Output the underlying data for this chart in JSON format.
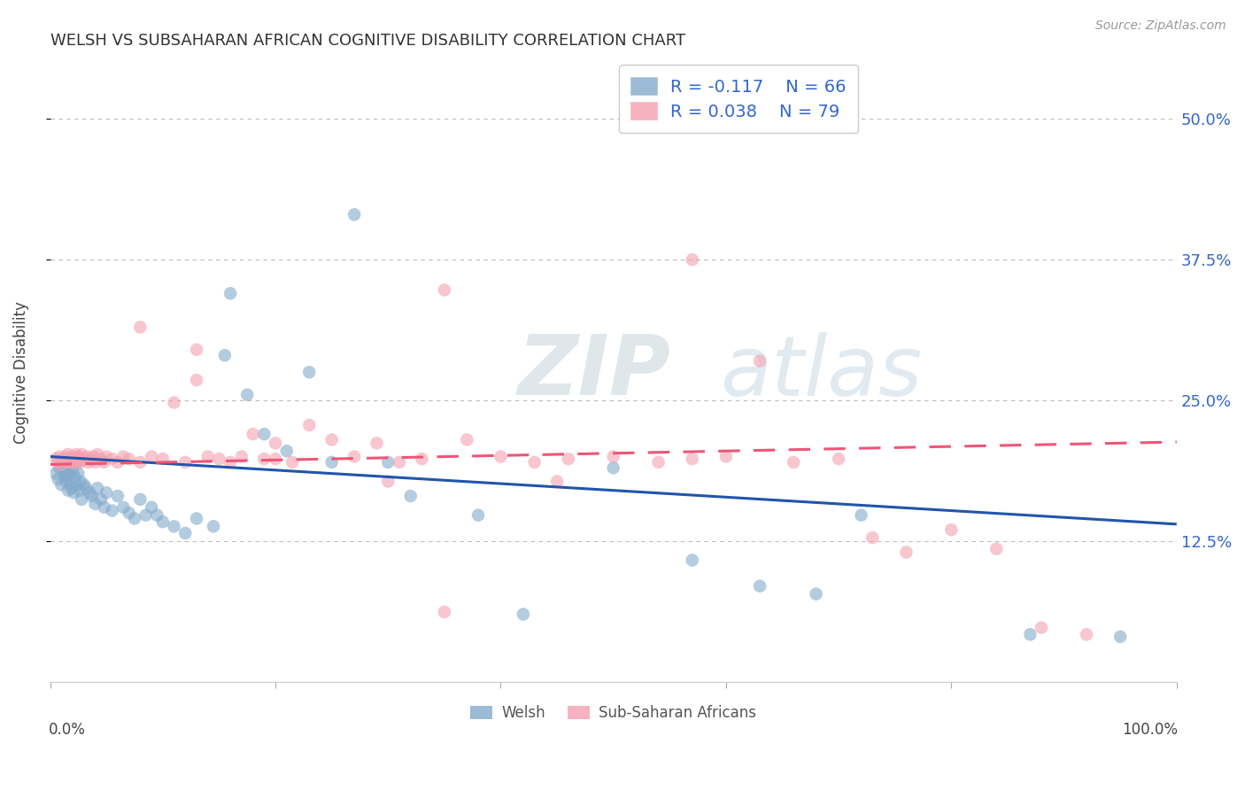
{
  "title": "WELSH VS SUBSAHARAN AFRICAN COGNITIVE DISABILITY CORRELATION CHART",
  "source": "Source: ZipAtlas.com",
  "ylabel": "Cognitive Disability",
  "legend_welsh": "Welsh",
  "legend_ssa": "Sub-Saharan Africans",
  "r_welsh": -0.117,
  "n_welsh": 66,
  "r_ssa": 0.038,
  "n_ssa": 79,
  "welsh_color": "#82AACC",
  "ssa_color": "#F4A0B0",
  "welsh_line_color": "#2255AA",
  "ssa_line_color": "#EE5577",
  "watermark_zip": "ZIP",
  "watermark_atlas": "atlas",
  "xlim": [
    0.0,
    1.0
  ],
  "ylim": [
    0.0,
    0.55
  ],
  "ytick_vals": [
    0.125,
    0.25,
    0.375,
    0.5
  ],
  "ytick_labels": [
    "12.5%",
    "25.0%",
    "37.5%",
    "50.0%"
  ],
  "legend_text_color": "#3366CC",
  "welsh_x": [
    0.005,
    0.007,
    0.008,
    0.01,
    0.01,
    0.012,
    0.013,
    0.014,
    0.015,
    0.015,
    0.016,
    0.017,
    0.018,
    0.019,
    0.02,
    0.02,
    0.021,
    0.022,
    0.023,
    0.024,
    0.025,
    0.026,
    0.027,
    0.028,
    0.03,
    0.032,
    0.035,
    0.037,
    0.04,
    0.042,
    0.045,
    0.048,
    0.05,
    0.055,
    0.06,
    0.065,
    0.07,
    0.075,
    0.08,
    0.085,
    0.09,
    0.095,
    0.1,
    0.11,
    0.12,
    0.13,
    0.145,
    0.155,
    0.16,
    0.175,
    0.19,
    0.21,
    0.23,
    0.25,
    0.27,
    0.3,
    0.32,
    0.38,
    0.42,
    0.5,
    0.57,
    0.63,
    0.68,
    0.72,
    0.87,
    0.95
  ],
  "welsh_y": [
    0.185,
    0.18,
    0.19,
    0.175,
    0.195,
    0.188,
    0.182,
    0.178,
    0.192,
    0.183,
    0.17,
    0.185,
    0.176,
    0.172,
    0.195,
    0.187,
    0.168,
    0.182,
    0.175,
    0.195,
    0.185,
    0.17,
    0.178,
    0.162,
    0.175,
    0.172,
    0.168,
    0.165,
    0.158,
    0.172,
    0.162,
    0.155,
    0.168,
    0.152,
    0.165,
    0.155,
    0.15,
    0.145,
    0.162,
    0.148,
    0.155,
    0.148,
    0.142,
    0.138,
    0.132,
    0.145,
    0.138,
    0.29,
    0.345,
    0.255,
    0.22,
    0.205,
    0.275,
    0.195,
    0.415,
    0.195,
    0.165,
    0.148,
    0.06,
    0.19,
    0.108,
    0.085,
    0.078,
    0.148,
    0.042,
    0.04
  ],
  "ssa_x": [
    0.005,
    0.007,
    0.008,
    0.01,
    0.012,
    0.013,
    0.015,
    0.016,
    0.017,
    0.018,
    0.019,
    0.02,
    0.021,
    0.022,
    0.023,
    0.024,
    0.025,
    0.026,
    0.027,
    0.028,
    0.03,
    0.032,
    0.034,
    0.036,
    0.038,
    0.04,
    0.042,
    0.045,
    0.048,
    0.05,
    0.055,
    0.06,
    0.065,
    0.07,
    0.08,
    0.09,
    0.1,
    0.11,
    0.12,
    0.13,
    0.14,
    0.15,
    0.16,
    0.17,
    0.18,
    0.19,
    0.2,
    0.215,
    0.23,
    0.25,
    0.27,
    0.29,
    0.31,
    0.33,
    0.35,
    0.37,
    0.4,
    0.43,
    0.46,
    0.5,
    0.54,
    0.57,
    0.6,
    0.63,
    0.66,
    0.7,
    0.73,
    0.76,
    0.8,
    0.84,
    0.88,
    0.92,
    0.57,
    0.45,
    0.35,
    0.3,
    0.2,
    0.13,
    0.08
  ],
  "ssa_y": [
    0.198,
    0.195,
    0.2,
    0.193,
    0.197,
    0.2,
    0.195,
    0.202,
    0.196,
    0.199,
    0.195,
    0.2,
    0.198,
    0.195,
    0.202,
    0.196,
    0.2,
    0.198,
    0.195,
    0.202,
    0.198,
    0.2,
    0.195,
    0.198,
    0.2,
    0.195,
    0.202,
    0.198,
    0.195,
    0.2,
    0.198,
    0.195,
    0.2,
    0.198,
    0.195,
    0.2,
    0.198,
    0.248,
    0.195,
    0.268,
    0.2,
    0.198,
    0.195,
    0.2,
    0.22,
    0.198,
    0.212,
    0.195,
    0.228,
    0.215,
    0.2,
    0.212,
    0.195,
    0.198,
    0.348,
    0.215,
    0.2,
    0.195,
    0.198,
    0.2,
    0.195,
    0.198,
    0.2,
    0.285,
    0.195,
    0.198,
    0.128,
    0.115,
    0.135,
    0.118,
    0.048,
    0.042,
    0.375,
    0.178,
    0.062,
    0.178,
    0.198,
    0.295,
    0.315
  ]
}
